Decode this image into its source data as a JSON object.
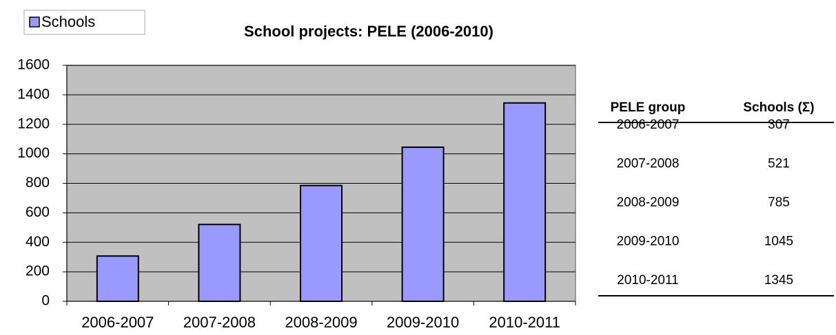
{
  "chart_data": {
    "type": "bar",
    "title": "School projects: PELE (2006-2010)",
    "categories": [
      "2006-2007",
      "2007-2008",
      "2008-2009",
      "2009-2010",
      "2010-2011"
    ],
    "series": [
      {
        "name": "Schools",
        "color": "#9999ff",
        "values": [
          307,
          521,
          785,
          1045,
          1345
        ]
      }
    ],
    "ylim": [
      0,
      1600
    ],
    "yticks": [
      0,
      200,
      400,
      600,
      800,
      1000,
      1200,
      1400,
      1600
    ],
    "grid": true,
    "legend": "top-left"
  },
  "table": {
    "header": [
      "PELE group",
      "Schools (Σ)"
    ],
    "rows": [
      [
        "2006-2007",
        307
      ],
      [
        "2007-2008",
        521
      ],
      [
        "2008-2009",
        785
      ],
      [
        "2009-2010",
        1045
      ],
      [
        "2010-2011",
        1345
      ]
    ]
  }
}
